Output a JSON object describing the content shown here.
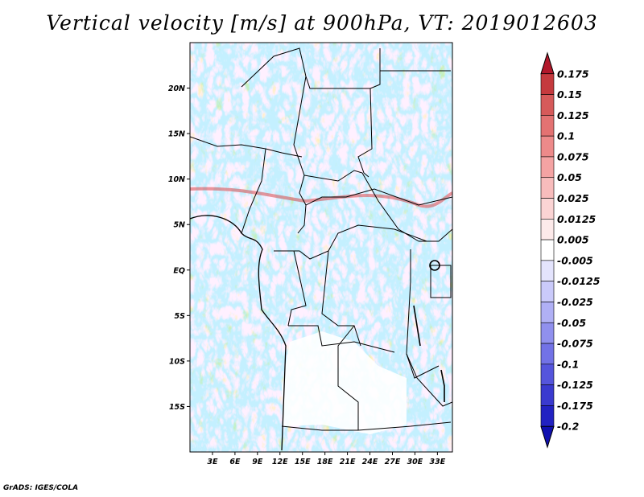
{
  "title": "Vertical velocity [m/s] at 900hPa, VT: 2019012603",
  "credit": "GrADS: IGES/COLA",
  "map": {
    "lon_range": [
      0,
      35
    ],
    "lat_range": [
      -20,
      25
    ],
    "lat_ticks": [
      {
        "lat": 20,
        "label": "20N"
      },
      {
        "lat": 15,
        "label": "15N"
      },
      {
        "lat": 10,
        "label": "10N"
      },
      {
        "lat": 5,
        "label": "5N"
      },
      {
        "lat": 0,
        "label": "EQ"
      },
      {
        "lat": -5,
        "label": "5S"
      },
      {
        "lat": -10,
        "label": "10S"
      },
      {
        "lat": -15,
        "label": "15S"
      }
    ],
    "lon_ticks": [
      {
        "lon": 3,
        "label": "3E"
      },
      {
        "lon": 6,
        "label": "6E"
      },
      {
        "lon": 9,
        "label": "9E"
      },
      {
        "lon": 12,
        "label": "12E"
      },
      {
        "lon": 15,
        "label": "15E"
      },
      {
        "lon": 18,
        "label": "18E"
      },
      {
        "lon": 21,
        "label": "21E"
      },
      {
        "lon": 24,
        "label": "24E"
      },
      {
        "lon": 27,
        "label": "27E"
      },
      {
        "lon": 30,
        "label": "30E"
      },
      {
        "lon": 33,
        "label": "33E"
      }
    ]
  },
  "colorbar": {
    "levels": [
      "0.175",
      "0.15",
      "0.125",
      "0.1",
      "0.075",
      "0.05",
      "0.025",
      "0.0125",
      "0.005",
      "-0.005",
      "-0.0125",
      "-0.025",
      "-0.05",
      "-0.075",
      "-0.1",
      "-0.125",
      "-0.175",
      "-0.2"
    ],
    "colors": [
      "#b2182b",
      "#c53a3e",
      "#d65a5a",
      "#e37272",
      "#ed8a8a",
      "#f4a3a3",
      "#f8bcbc",
      "#fbd4d4",
      "#fdeaea",
      "#ffffff",
      "#e4e4fd",
      "#cacafa",
      "#b0b0f5",
      "#9090ee",
      "#7272e6",
      "#5555dc",
      "#3a3acf",
      "#2222c2",
      "#1010b0"
    ]
  }
}
